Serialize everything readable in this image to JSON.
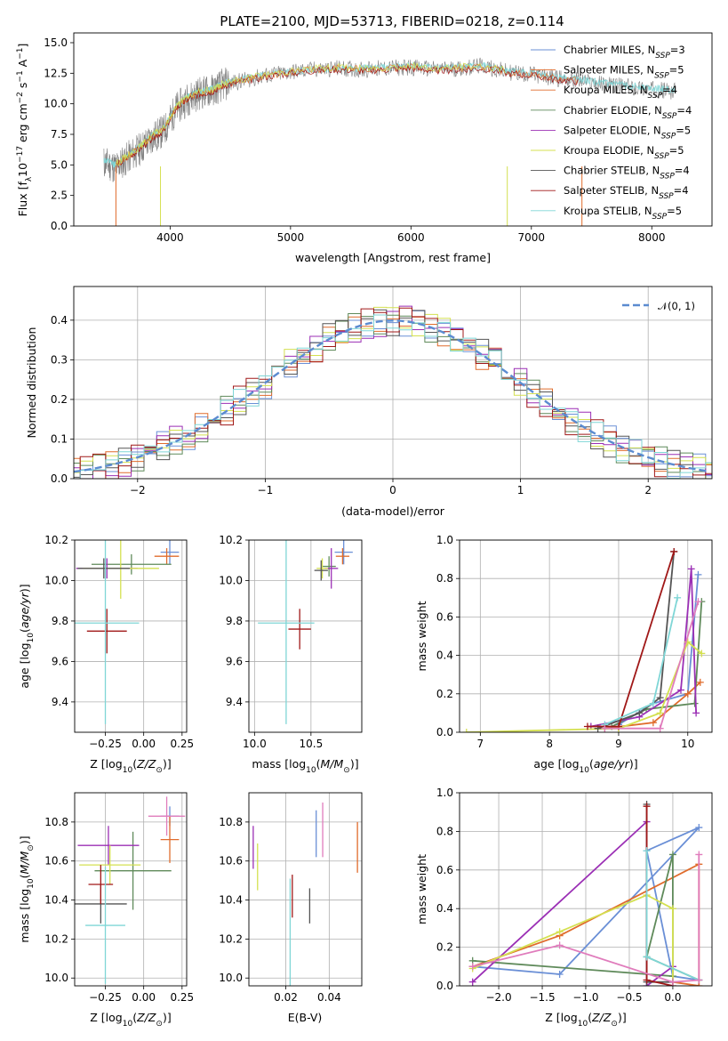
{
  "figure": {
    "title": "PLATE=2100, MJD=53713, FIBERID=0218, z=0.114"
  },
  "legend": {
    "entries": [
      {
        "label": "Chabrier MILES, N_SSP=3",
        "color": "#6a8fd6"
      },
      {
        "label": "Salpeter MILES, N_SSP=5",
        "color": "#e06c2c"
      },
      {
        "label": "Kroupa MILES, N_SSP=4",
        "color": "#e06c2c"
      },
      {
        "label": "Chabrier ELODIE, N_SSP=4",
        "color": "#5f8a5a"
      },
      {
        "label": "Salpeter ELODIE, N_SSP=5",
        "color": "#9b2fb5"
      },
      {
        "label": "Kroupa ELODIE, N_SSP=5",
        "color": "#d4e050"
      },
      {
        "label": "Chabrier STELIB, N_SSP=4",
        "color": "#555555"
      },
      {
        "label": "Salpeter STELIB, N_SSP=4",
        "color": "#a01818"
      },
      {
        "label": "Kroupa STELIB, N_SSP=5",
        "color": "#7fd6d6"
      }
    ]
  },
  "chart_data": [
    {
      "id": "spectrum",
      "type": "line",
      "xlabel": "wavelength [Angstrom, rest frame]",
      "ylabel": "Flux [f_λ 10^-17 erg cm^-2 s^-1 A^-1]",
      "xlim": [
        3200,
        8500
      ],
      "ylim": [
        0,
        15.8
      ],
      "xticks": [
        4000,
        5000,
        6000,
        7000,
        8000
      ],
      "yticks": [
        0.0,
        2.5,
        5.0,
        7.5,
        10.0,
        12.5,
        15.0
      ],
      "series": [
        {
          "color": "#808080",
          "wavelength": [
            3450,
            3550,
            3650,
            3750,
            3850,
            3950,
            4050,
            4150,
            4250,
            4350,
            4450,
            4600,
            4800,
            5000,
            5200,
            5400,
            5600,
            5800,
            6000,
            6200,
            6400,
            6600,
            6800,
            7000,
            7200,
            7400,
            7600,
            7800,
            8000,
            8200
          ],
          "flux": [
            5.2,
            4.8,
            5.6,
            6.3,
            7.2,
            7.8,
            9.6,
            10.4,
            10.9,
            11.1,
            11.6,
            11.9,
            12.3,
            12.6,
            12.8,
            12.9,
            12.8,
            12.9,
            13.0,
            12.8,
            12.9,
            13.1,
            12.6,
            12.4,
            12.1,
            11.9,
            11.6,
            11.4,
            11.2,
            11.0
          ]
        },
        {
          "color": "#7fd6d6",
          "wavelength": [
            3450,
            3550,
            3650,
            3750,
            3850,
            3950,
            4050,
            4150,
            4250,
            4350,
            4450,
            4600,
            4800,
            5000,
            5200,
            5400,
            5600,
            5800,
            6000,
            6200,
            6400,
            6600,
            6800,
            7000,
            7200,
            7400,
            7600,
            7800,
            8000,
            8200
          ],
          "flux": [
            5.4,
            5.0,
            5.8,
            6.5,
            7.4,
            8.0,
            9.8,
            10.6,
            11.0,
            11.2,
            11.7,
            12.0,
            12.4,
            12.6,
            12.8,
            12.9,
            12.9,
            13.0,
            13.1,
            12.9,
            13.0,
            13.1,
            12.7,
            12.5,
            12.2,
            12.0,
            11.7,
            11.5,
            11.3,
            11.1
          ]
        },
        {
          "color": "#e06c2c",
          "wavelength": [
            3550,
            3650,
            3750,
            3850,
            3950,
            4050,
            4150,
            4250,
            4350,
            4450,
            4600,
            4800,
            5000,
            5200,
            5400,
            5600,
            5800,
            6000,
            6200,
            6400,
            6600,
            6800,
            7000,
            7200,
            7400
          ],
          "flux": [
            5.0,
            5.7,
            6.4,
            7.3,
            7.9,
            9.7,
            10.5,
            10.9,
            11.1,
            11.6,
            11.9,
            12.3,
            12.6,
            12.8,
            12.9,
            12.8,
            12.9,
            13.0,
            12.8,
            12.9,
            13.0,
            12.6,
            12.4,
            12.1,
            11.9
          ]
        },
        {
          "color": "#a01818",
          "wavelength": [
            3550,
            3650,
            3750,
            3850,
            3950,
            4050,
            4150,
            4250,
            4350,
            4450,
            4600,
            4800,
            5000,
            5200,
            5400,
            5600,
            5800,
            6000,
            6200,
            6400,
            6600,
            6800,
            7000,
            7200,
            7400
          ],
          "flux": [
            4.9,
            5.6,
            6.3,
            7.2,
            7.8,
            9.6,
            10.4,
            10.8,
            11.0,
            11.5,
            11.8,
            12.2,
            12.5,
            12.7,
            12.8,
            12.7,
            12.8,
            12.9,
            12.7,
            12.8,
            12.9,
            12.5,
            12.3,
            12.0,
            11.8
          ]
        },
        {
          "color": "#d4e050",
          "wavelength": [
            3550,
            3650,
            3750,
            3850,
            3950,
            4050,
            4150,
            4250,
            4350,
            4450,
            4600,
            4800,
            5000,
            5200,
            5400,
            5600,
            5800,
            6000,
            6200,
            6400,
            6600,
            6800
          ],
          "flux": [
            5.1,
            5.8,
            6.5,
            7.4,
            8.0,
            9.8,
            10.6,
            11.0,
            11.2,
            11.7,
            12.0,
            12.4,
            12.7,
            12.9,
            13.0,
            12.9,
            13.0,
            13.1,
            12.9,
            13.0,
            13.1,
            12.7
          ]
        }
      ]
    },
    {
      "id": "residuals",
      "type": "line",
      "xlabel": "(data-model)/error",
      "ylabel": "Normed distribution",
      "xlim": [
        -2.5,
        2.5
      ],
      "ylim": [
        0,
        0.485
      ],
      "xticks": [
        -2,
        -1,
        0,
        1,
        2
      ],
      "yticks": [
        0.0,
        0.1,
        0.2,
        0.3,
        0.4
      ],
      "legend": "$\\mathcal{N}(0,1)$",
      "legend_text": "𝒩(0, 1)",
      "gaussian": {
        "mu": 0,
        "sigma": 1,
        "color": "#5b8bd0"
      },
      "bin_width": 0.1,
      "hist_series": [
        {
          "color": "#6a8fd6",
          "noise_seed": 1
        },
        {
          "color": "#e06c2c",
          "noise_seed": 2
        },
        {
          "color": "#5f8a5a",
          "noise_seed": 3
        },
        {
          "color": "#9b2fb5",
          "noise_seed": 4
        },
        {
          "color": "#d4e050",
          "noise_seed": 5
        },
        {
          "color": "#555555",
          "noise_seed": 6
        },
        {
          "color": "#a01818",
          "noise_seed": 7
        },
        {
          "color": "#7fd6d6",
          "noise_seed": 8
        }
      ]
    },
    {
      "id": "age-vs-Z",
      "type": "scatter",
      "xlabel": "Z [log10(Z/Z☉)]",
      "ylabel": "age [log10(age/yr)]",
      "xlim": [
        -0.45,
        0.28
      ],
      "ylim": [
        9.25,
        10.2
      ],
      "xticks": [
        -0.25,
        0.0,
        0.25
      ],
      "yticks": [
        9.4,
        9.6,
        9.8,
        10.0,
        10.2
      ],
      "points": [
        {
          "x": 0.17,
          "y": 10.14,
          "xerr": 0.06,
          "yerr": 0.06,
          "color": "#6a8fd6"
        },
        {
          "x": 0.15,
          "y": 10.12,
          "xerr": 0.08,
          "yerr": 0.04,
          "color": "#e06c2c"
        },
        {
          "x": -0.08,
          "y": 10.08,
          "xerr": 0.26,
          "yerr": 0.05,
          "color": "#5f8a5a"
        },
        {
          "x": -0.24,
          "y": 10.06,
          "xerr": 0.2,
          "yerr": 0.05,
          "color": "#9b2fb5"
        },
        {
          "x": -0.15,
          "y": 10.06,
          "xerr": 0.25,
          "yerr": 0.15,
          "color": "#d4e050"
        },
        {
          "x": -0.26,
          "y": 10.06,
          "xerr": 0.17,
          "yerr": 0.05,
          "color": "#555555"
        },
        {
          "x": -0.24,
          "y": 9.75,
          "xerr": 0.13,
          "yerr": 0.11,
          "color": "#a01818"
        },
        {
          "x": -0.25,
          "y": 9.79,
          "xerr": 0.22,
          "yerr": 0.5,
          "color": "#7fd6d6"
        }
      ]
    },
    {
      "id": "age-vs-mass",
      "type": "scatter",
      "xlabel": "mass [log10(M/M☉)]",
      "ylabel": "",
      "xlim": [
        9.95,
        10.95
      ],
      "ylim": [
        9.25,
        10.2
      ],
      "xticks": [
        10.0,
        10.5
      ],
      "yticks": [
        9.4,
        9.6,
        9.8,
        10.0,
        10.2
      ],
      "points": [
        {
          "x": 10.79,
          "y": 10.14,
          "xerr": 0.08,
          "yerr": 0.06,
          "color": "#6a8fd6"
        },
        {
          "x": 10.78,
          "y": 10.12,
          "xerr": 0.06,
          "yerr": 0.04,
          "color": "#e06c2c"
        },
        {
          "x": 10.66,
          "y": 10.07,
          "xerr": 0.06,
          "yerr": 0.05,
          "color": "#5f8a5a"
        },
        {
          "x": 10.68,
          "y": 10.06,
          "xerr": 0.06,
          "yerr": 0.1,
          "color": "#9b2fb5"
        },
        {
          "x": 10.6,
          "y": 10.06,
          "xerr": 0.05,
          "yerr": 0.05,
          "color": "#d4e050"
        },
        {
          "x": 10.59,
          "y": 10.05,
          "xerr": 0.06,
          "yerr": 0.05,
          "color": "#555555"
        },
        {
          "x": 10.4,
          "y": 9.76,
          "xerr": 0.1,
          "yerr": 0.1,
          "color": "#a01818"
        },
        {
          "x": 10.28,
          "y": 9.79,
          "xerr": 0.25,
          "yerr": 0.5,
          "color": "#7fd6d6"
        }
      ]
    },
    {
      "id": "weight-vs-age",
      "type": "line",
      "xlabel": "age [log10(age/yr)]",
      "ylabel": "mass weight",
      "xlim": [
        6.7,
        10.35
      ],
      "ylim": [
        0,
        1.0
      ],
      "xticks": [
        7,
        8,
        9,
        10
      ],
      "yticks": [
        0.0,
        0.2,
        0.4,
        0.6,
        0.8,
        1.0
      ],
      "series": [
        {
          "color": "#6a8fd6",
          "x": [
            9.0,
            9.5,
            10.0,
            10.15
          ],
          "y": [
            0.04,
            0.15,
            0.2,
            0.82
          ]
        },
        {
          "color": "#e06c2c",
          "x": [
            8.8,
            9.5,
            10.0,
            10.18
          ],
          "y": [
            0.02,
            0.05,
            0.2,
            0.26
          ]
        },
        {
          "color": "#5f8a5a",
          "x": [
            8.9,
            9.4,
            10.1,
            10.2
          ],
          "y": [
            0.03,
            0.12,
            0.15,
            0.68
          ]
        },
        {
          "color": "#9b2fb5",
          "x": [
            8.6,
            9.3,
            9.9,
            10.05,
            10.12
          ],
          "y": [
            0.03,
            0.08,
            0.22,
            0.85,
            0.1
          ]
        },
        {
          "color": "#d4e050",
          "x": [
            6.8,
            9.0,
            9.6,
            10.0,
            10.2
          ],
          "y": [
            0.0,
            0.02,
            0.1,
            0.47,
            0.41
          ]
        },
        {
          "color": "#555555",
          "x": [
            8.7,
            9.3,
            9.6,
            9.8
          ],
          "y": [
            0.02,
            0.1,
            0.18,
            0.94
          ]
        },
        {
          "color": "#a01818",
          "x": [
            8.55,
            9.0,
            9.8
          ],
          "y": [
            0.03,
            0.03,
            0.94
          ]
        },
        {
          "color": "#7fd6d6",
          "x": [
            8.8,
            9.5,
            9.85
          ],
          "y": [
            0.04,
            0.15,
            0.7
          ]
        },
        {
          "color": "#e07cbc",
          "x": [
            8.8,
            9.6,
            10.15
          ],
          "y": [
            0.02,
            0.02,
            0.68
          ]
        }
      ]
    },
    {
      "id": "mass-vs-Z",
      "type": "scatter",
      "xlabel": "Z [log10(Z/Z☉)]",
      "ylabel": "mass [log10(M/M☉)]",
      "xlim": [
        -0.45,
        0.28
      ],
      "ylim": [
        9.96,
        10.95
      ],
      "xticks": [
        -0.25,
        0.0,
        0.25
      ],
      "yticks": [
        10.0,
        10.2,
        10.4,
        10.6,
        10.8
      ],
      "points": [
        {
          "x": 0.17,
          "y": 10.83,
          "xerr": 0.06,
          "yerr": 0.05,
          "color": "#6a8fd6"
        },
        {
          "x": 0.17,
          "y": 10.71,
          "xerr": 0.06,
          "yerr": 0.12,
          "color": "#e06c2c"
        },
        {
          "x": -0.07,
          "y": 10.55,
          "xerr": 0.25,
          "yerr": 0.2,
          "color": "#5f8a5a"
        },
        {
          "x": -0.23,
          "y": 10.68,
          "xerr": 0.2,
          "yerr": 0.1,
          "color": "#9b2fb5"
        },
        {
          "x": -0.22,
          "y": 10.58,
          "xerr": 0.2,
          "yerr": 0.1,
          "color": "#d4e050"
        },
        {
          "x": -0.28,
          "y": 10.38,
          "xerr": 0.17,
          "yerr": 0.1,
          "color": "#555555"
        },
        {
          "x": -0.28,
          "y": 10.48,
          "xerr": 0.08,
          "yerr": 0.1,
          "color": "#a01818"
        },
        {
          "x": -0.25,
          "y": 10.27,
          "xerr": 0.13,
          "yerr": 0.3,
          "color": "#7fd6d6"
        },
        {
          "x": 0.15,
          "y": 10.83,
          "xerr": 0.12,
          "yerr": 0.1,
          "color": "#e07cbc"
        }
      ]
    },
    {
      "id": "mass-vs-EBV",
      "type": "scatter",
      "xlabel": "E(B-V)",
      "ylabel": "",
      "xlim": [
        0.003,
        0.055
      ],
      "ylim": [
        9.96,
        10.95
      ],
      "xticks": [
        0.02,
        0.04
      ],
      "yticks": [
        10.0,
        10.2,
        10.4,
        10.6,
        10.8
      ],
      "points": [
        {
          "x": 0.034,
          "y": 10.74,
          "yerr": 0.12,
          "color": "#6a8fd6"
        },
        {
          "x": 0.053,
          "y": 10.67,
          "yerr": 0.13,
          "color": "#e06c2c"
        },
        {
          "x": 0.037,
          "y": 10.76,
          "yerr": 0.14,
          "color": "#e07cbc"
        },
        {
          "x": 0.005,
          "y": 10.67,
          "yerr": 0.11,
          "color": "#9b2fb5"
        },
        {
          "x": 0.007,
          "y": 10.57,
          "yerr": 0.12,
          "color": "#d4e050"
        },
        {
          "x": 0.031,
          "y": 10.37,
          "yerr": 0.09,
          "color": "#555555"
        },
        {
          "x": 0.023,
          "y": 10.42,
          "yerr": 0.11,
          "color": "#a01818"
        },
        {
          "x": 0.022,
          "y": 10.23,
          "yerr": 0.28,
          "color": "#7fd6d6"
        }
      ]
    },
    {
      "id": "weight-vs-Z",
      "type": "line",
      "xlabel": "Z [log10(Z/Z☉)]",
      "ylabel": "mass weight",
      "xlim": [
        -2.45,
        0.45
      ],
      "ylim": [
        0,
        1.0
      ],
      "xticks": [
        -2.0,
        -1.5,
        -1.0,
        -0.5,
        0.0
      ],
      "yticks": [
        0.0,
        0.2,
        0.4,
        0.6,
        0.8,
        1.0
      ],
      "series": [
        {
          "color": "#6a8fd6",
          "x": [
            -2.3,
            -1.3,
            0.3,
            -0.3,
            0.0,
            0.3
          ],
          "y": [
            0.1,
            0.06,
            0.82,
            0.7,
            0.05,
            0.03
          ]
        },
        {
          "color": "#e06c2c",
          "x": [
            -2.3,
            -1.3,
            0.3,
            0.3,
            0.0
          ],
          "y": [
            0.1,
            0.26,
            0.63,
            0.0,
            0.02
          ]
        },
        {
          "color": "#5f8a5a",
          "x": [
            -2.3,
            0.0,
            0.0,
            -0.3,
            0.3
          ],
          "y": [
            0.13,
            0.05,
            0.68,
            0.15,
            0.03
          ]
        },
        {
          "color": "#9b2fb5",
          "x": [
            -2.3,
            -0.3,
            -0.3,
            0.0
          ],
          "y": [
            0.02,
            0.85,
            0.0,
            0.1
          ]
        },
        {
          "color": "#d4e050",
          "x": [
            -2.3,
            -1.3,
            -0.3,
            0.0,
            0.0
          ],
          "y": [
            0.09,
            0.28,
            0.47,
            0.4,
            0.02
          ]
        },
        {
          "color": "#555555",
          "x": [
            -0.3,
            -0.3,
            0.0
          ],
          "y": [
            0.94,
            0.02,
            0.02
          ]
        },
        {
          "color": "#a01818",
          "x": [
            -0.3,
            -0.3,
            0.0
          ],
          "y": [
            0.93,
            0.03,
            0.0
          ]
        },
        {
          "color": "#7fd6d6",
          "x": [
            -0.3,
            -0.3,
            0.3
          ],
          "y": [
            0.7,
            0.15,
            0.03
          ]
        },
        {
          "color": "#e07cbc",
          "x": [
            -2.3,
            -1.3,
            0.0,
            0.3,
            0.3
          ],
          "y": [
            0.1,
            0.21,
            0.02,
            0.03,
            0.68
          ]
        }
      ]
    }
  ]
}
